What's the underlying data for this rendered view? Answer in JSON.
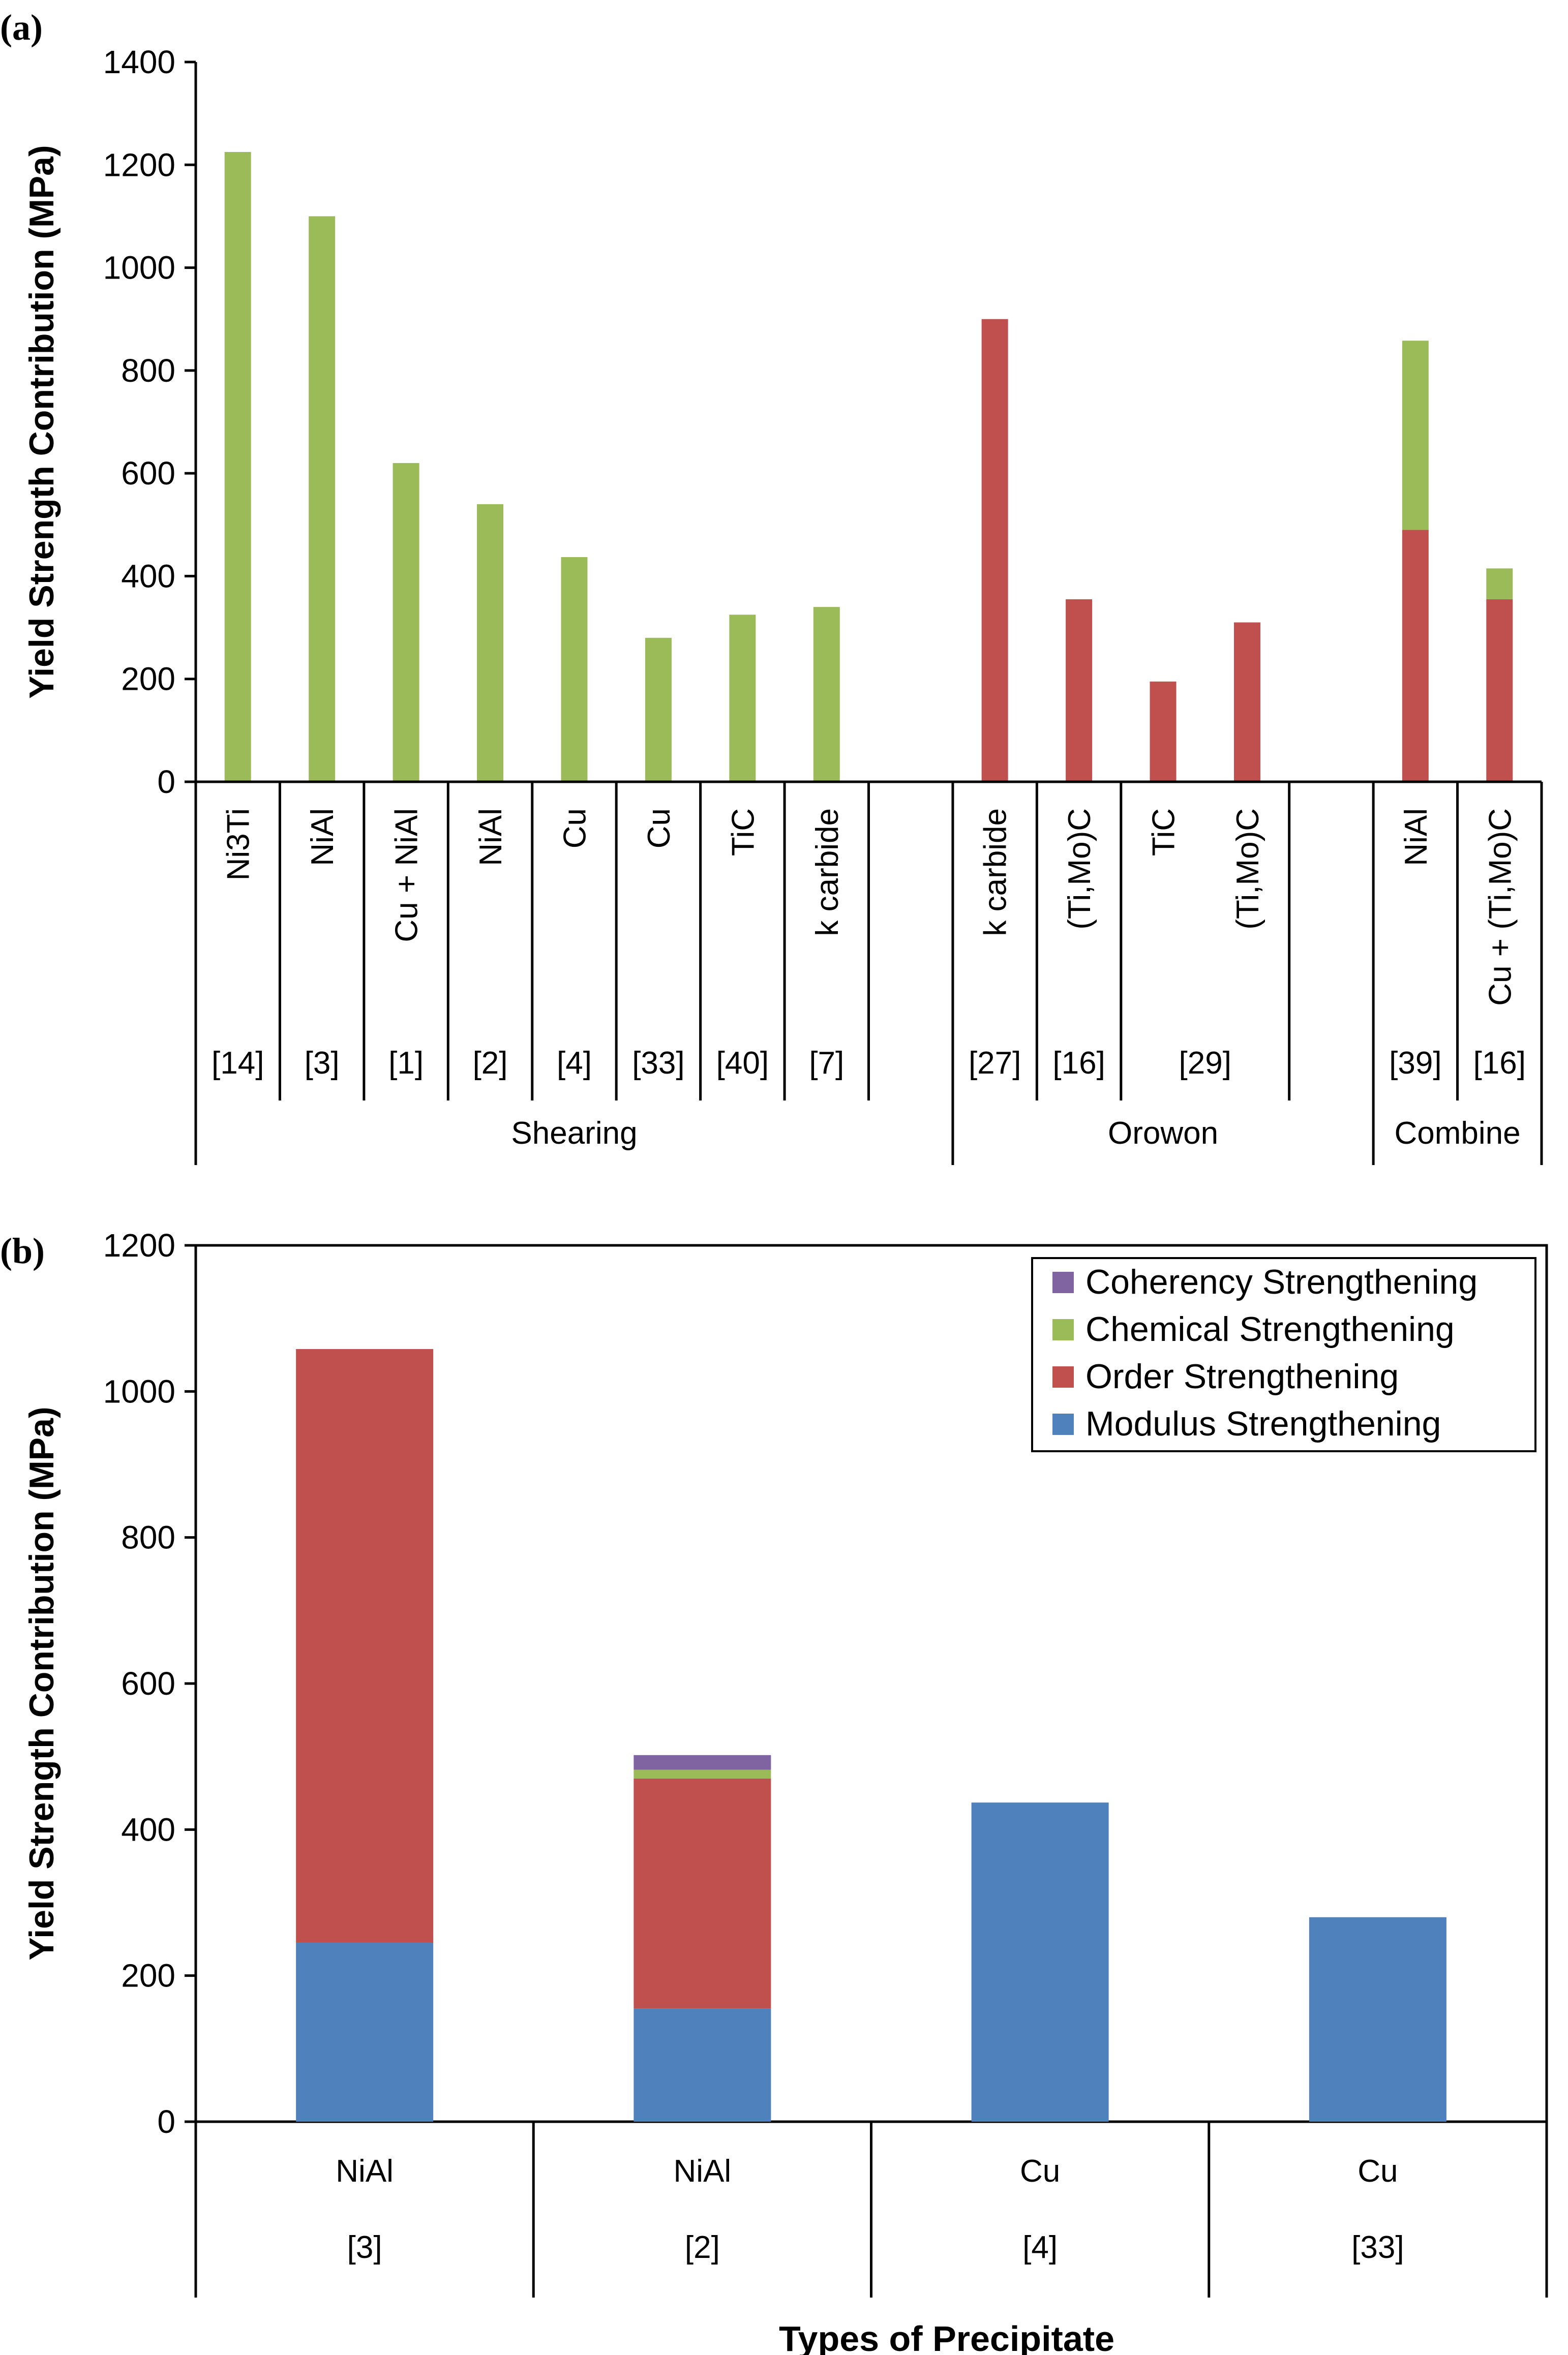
{
  "colors": {
    "modulus": "#4f81bd",
    "order": "#c0504d",
    "chemical": "#9bbb59",
    "coherency": "#8064a2"
  },
  "chart_data": [
    {
      "panel": "(a)",
      "type": "bar",
      "stacked": true,
      "ylabel": "Yield Strength Contribution (MPa)",
      "ylim": [
        0,
        1400
      ],
      "yticks": [
        0,
        200,
        400,
        600,
        800,
        1000,
        1200,
        1400
      ],
      "series_names": [
        "Order Strengthening",
        "Chemical Strengthening"
      ],
      "bars": [
        {
          "precipitate": "Ni3Ti",
          "order": 0,
          "chemical": 1225
        },
        {
          "precipitate": "NiAl",
          "order": 0,
          "chemical": 1100
        },
        {
          "precipitate": "Cu + NiAl",
          "order": 0,
          "chemical": 620
        },
        {
          "precipitate": "NiAl",
          "order": 0,
          "chemical": 540
        },
        {
          "precipitate": "Cu",
          "order": 0,
          "chemical": 437
        },
        {
          "precipitate": "Cu",
          "order": 0,
          "chemical": 280
        },
        {
          "precipitate": "TiC",
          "order": 0,
          "chemical": 325
        },
        {
          "precipitate": "k carbide",
          "order": 0,
          "chemical": 340
        },
        {
          "precipitate": "",
          "order": 0,
          "chemical": 0
        },
        {
          "precipitate": "k carbide",
          "order": 900,
          "chemical": 0
        },
        {
          "precipitate": "(Ti,Mo)C",
          "order": 355,
          "chemical": 0
        },
        {
          "precipitate": "TiC",
          "order": 195,
          "chemical": 0
        },
        {
          "precipitate": "(Ti,Mo)C",
          "order": 310,
          "chemical": 0
        },
        {
          "precipitate": "",
          "order": 0,
          "chemical": 0
        },
        {
          "precipitate": "NiAl",
          "order": 490,
          "chemical": 368
        },
        {
          "precipitate": "Cu + (Ti,Mo)C",
          "order": 355,
          "chemical": 60
        }
      ],
      "refs": [
        {
          "label": "[14]",
          "start": 0,
          "end": 0
        },
        {
          "label": "[3]",
          "start": 1,
          "end": 1
        },
        {
          "label": "[1]",
          "start": 2,
          "end": 2
        },
        {
          "label": "[2]",
          "start": 3,
          "end": 3
        },
        {
          "label": "[4]",
          "start": 4,
          "end": 4
        },
        {
          "label": "[33]",
          "start": 5,
          "end": 5
        },
        {
          "label": "[40]",
          "start": 6,
          "end": 6
        },
        {
          "label": "[7]",
          "start": 7,
          "end": 7
        },
        {
          "label": "",
          "start": 8,
          "end": 8
        },
        {
          "label": "[27]",
          "start": 9,
          "end": 9
        },
        {
          "label": "[16]",
          "start": 10,
          "end": 10
        },
        {
          "label": "[29]",
          "start": 11,
          "end": 12
        },
        {
          "label": "",
          "start": 13,
          "end": 13
        },
        {
          "label": "[39]",
          "start": 14,
          "end": 14
        },
        {
          "label": "[16]",
          "start": 15,
          "end": 15
        }
      ],
      "groups": [
        {
          "label": "Shearing",
          "start": 0,
          "end": 8
        },
        {
          "label": "Orowon",
          "start": 9,
          "end": 13
        },
        {
          "label": "Combine",
          "start": 14,
          "end": 15
        }
      ]
    },
    {
      "panel": "(b)",
      "type": "bar",
      "stacked": true,
      "ylabel": "Yield Strength Contribution (MPa)",
      "xlabel": "Types of Precipitate",
      "ylim": [
        0,
        1200
      ],
      "yticks": [
        0,
        200,
        400,
        600,
        800,
        1000,
        1200
      ],
      "legend": [
        "Coherency Strengthening",
        "Chemical Strengthening",
        "Order Strengthening",
        "Modulus Strengthening"
      ],
      "legend_position": "top-right",
      "bars": [
        {
          "precipitate": "NiAl",
          "ref": "[3]",
          "modulus": 245,
          "order": 813,
          "chemical": 0,
          "coherency": 0
        },
        {
          "precipitate": "NiAl",
          "ref": "[2]",
          "modulus": 155,
          "order": 315,
          "chemical": 12,
          "coherency": 20
        },
        {
          "precipitate": "Cu",
          "ref": "[4]",
          "modulus": 437,
          "order": 0,
          "chemical": 0,
          "coherency": 0
        },
        {
          "precipitate": "Cu",
          "ref": "[33]",
          "modulus": 280,
          "order": 0,
          "chemical": 0,
          "coherency": 0
        }
      ]
    }
  ]
}
